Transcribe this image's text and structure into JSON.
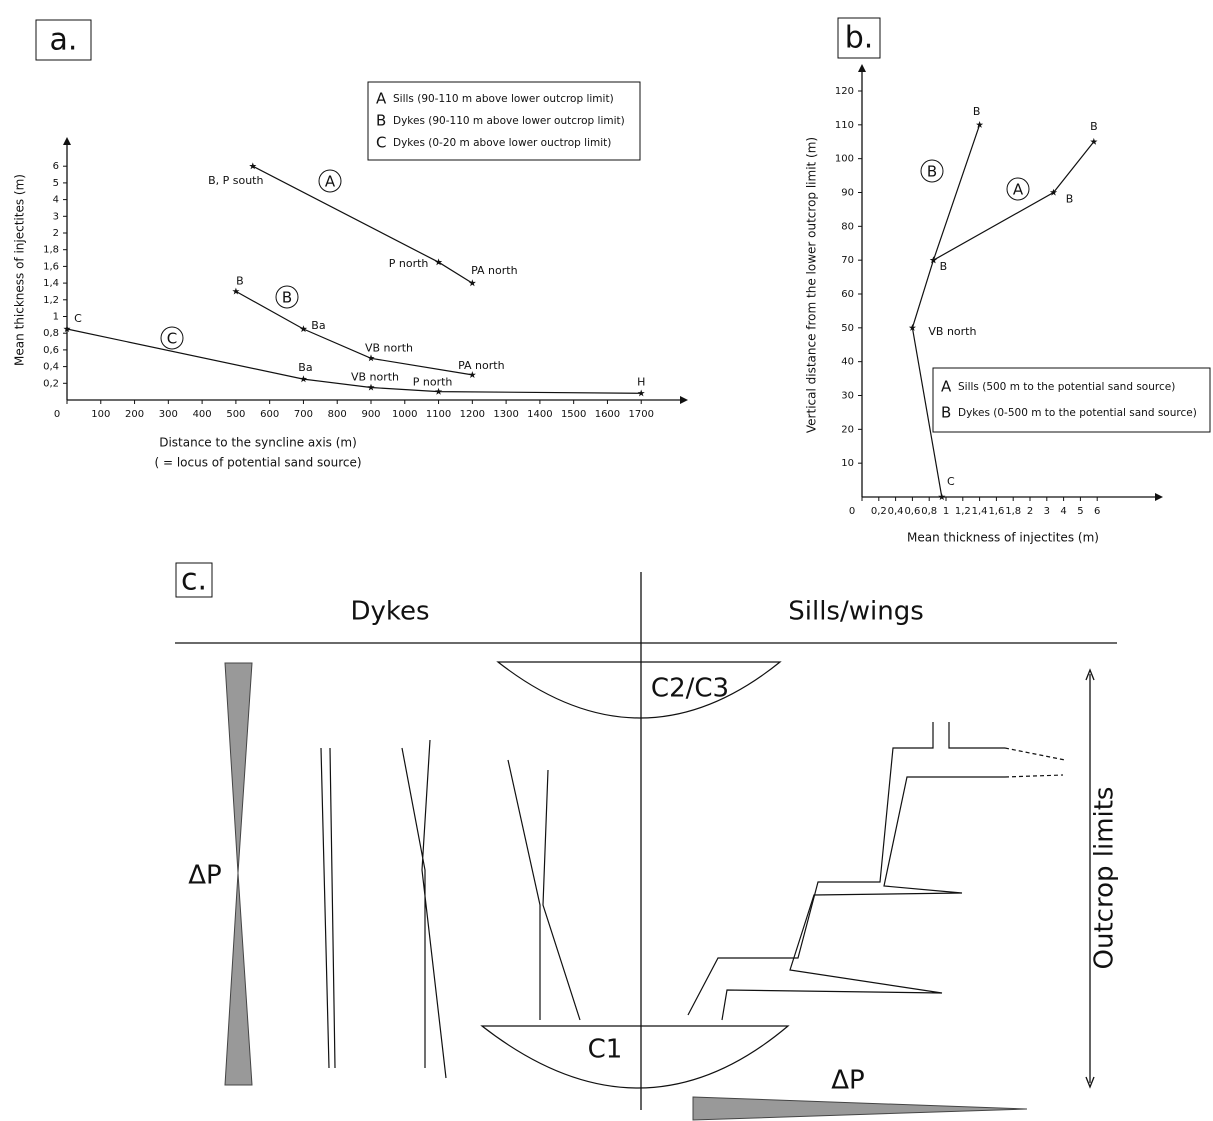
{
  "chart_data": [
    {
      "type": "line",
      "panel": "a.",
      "xlabel": "Distance to the syncline axis (m)",
      "xlabel_note": "( = locus of potential sand source)",
      "ylabel": "Mean thickness of injectites (m)",
      "xlim": [
        0,
        1800
      ],
      "ylim": [
        0,
        6
      ],
      "yscale": "tick-spaced",
      "xticks": [
        0,
        100,
        200,
        300,
        400,
        500,
        600,
        700,
        800,
        900,
        1000,
        1100,
        1200,
        1300,
        1400,
        1500,
        1600,
        1700
      ],
      "yticks": [
        {
          "value": 0.2,
          "label": "0,2"
        },
        {
          "value": 0.4,
          "label": "0,4"
        },
        {
          "value": 0.6,
          "label": "0,6"
        },
        {
          "value": 0.8,
          "label": "0,8"
        },
        1,
        {
          "value": 1.2,
          "label": "1,2"
        },
        {
          "value": 1.4,
          "label": "1,4"
        },
        {
          "value": 1.6,
          "label": "1,6"
        },
        {
          "value": 1.8,
          "label": "1,8"
        },
        2,
        3,
        4,
        5,
        6
      ],
      "series": [
        {
          "key": "A",
          "name": "Sills (90-110 m above lower outcrop limit)",
          "color": "#111111",
          "x": [
            550,
            1100,
            1200
          ],
          "values": [
            6,
            1.65,
            1.4
          ],
          "point_labels": [
            "B, P south",
            "P north",
            "PA north"
          ]
        },
        {
          "key": "B",
          "name": "Dykes (90-110 m above lower outcrop limit)",
          "color": "#111111",
          "x": [
            500,
            700,
            900,
            1200
          ],
          "values": [
            1.3,
            0.85,
            0.5,
            0.3
          ],
          "point_labels": [
            "B",
            "Ba",
            "VB north",
            "PA north"
          ]
        },
        {
          "key": "C",
          "name": "Dykes (0-20 m above lower ouctrop limit)",
          "color": "#111111",
          "x": [
            0,
            700,
            900,
            1100,
            1700
          ],
          "values": [
            0.85,
            0.25,
            0.15,
            0.1,
            0.08
          ],
          "point_labels": [
            "C",
            "Ba",
            "VB north",
            "P north",
            "H"
          ]
        }
      ]
    },
    {
      "type": "line",
      "panel": "b.",
      "xlabel": "Mean thickness of injectites (m)",
      "ylabel": "Vertical distance  from the lower outcrop limit (m)",
      "xlim": [
        0,
        6
      ],
      "ylim": [
        0,
        120
      ],
      "xscale": "tick-spaced",
      "xticks": [
        0,
        {
          "value": 0.2,
          "label": "0,2"
        },
        {
          "value": 0.4,
          "label": "0,4"
        },
        {
          "value": 0.6,
          "label": "0,6"
        },
        {
          "value": 0.8,
          "label": "0,8"
        },
        1,
        {
          "value": 1.2,
          "label": "1,2"
        },
        {
          "value": 1.4,
          "label": "1,4"
        },
        {
          "value": 1.6,
          "label": "1,6"
        },
        {
          "value": 1.8,
          "label": "1,8"
        },
        2,
        3,
        4,
        5,
        6
      ],
      "yticks": [
        10,
        20,
        30,
        40,
        50,
        60,
        70,
        80,
        90,
        100,
        110,
        120
      ],
      "series": [
        {
          "key": "A",
          "name": "Sills (500 m to the potential sand source)",
          "color": "#111111",
          "x": [
            0.85,
            3.4,
            5.8
          ],
          "values": [
            70,
            90,
            105
          ],
          "point_labels": [
            "B",
            "B",
            "B"
          ]
        },
        {
          "key": "B",
          "name": "Dykes (0-500 m to the potential sand source)",
          "color": "#111111",
          "x": [
            0.95,
            0.6,
            0.85,
            1.4
          ],
          "values": [
            0,
            50,
            70,
            110
          ],
          "point_labels": [
            "C",
            "VB north",
            null,
            "B"
          ]
        }
      ]
    }
  ],
  "diagram": {
    "label": "c.",
    "left_heading": "Dykes",
    "right_heading": "Sills/wings",
    "upper_lens": "C2/C3",
    "lower_lens": "C1",
    "pressure_left": "ΔP",
    "pressure_bottom": "ΔP",
    "range_label": "Outcrop limits"
  }
}
